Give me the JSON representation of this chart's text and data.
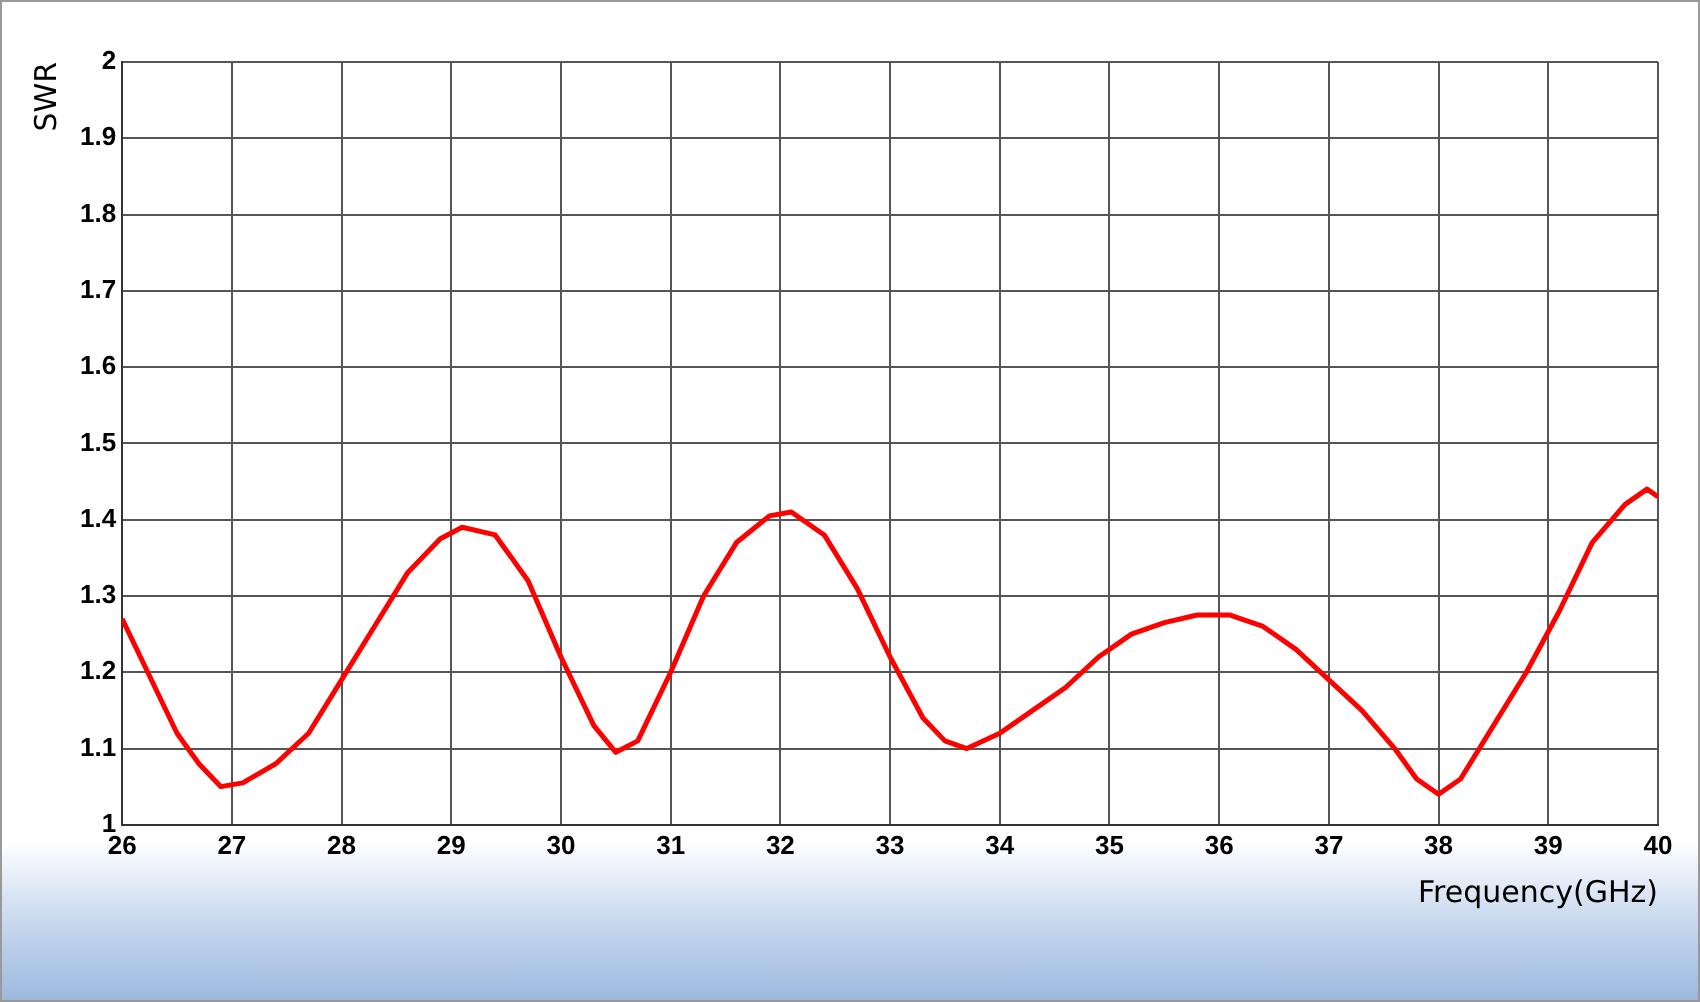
{
  "chart_data": {
    "type": "line",
    "xlabel": "Frequency(GHz)",
    "ylabel": "SWR",
    "xlim": [
      26,
      40
    ],
    "xticks": [
      26,
      27,
      28,
      29,
      30,
      31,
      32,
      33,
      34,
      35,
      36,
      37,
      38,
      39,
      40
    ],
    "ylim": [
      1,
      2
    ],
    "yticks": [
      1,
      1.1,
      1.2,
      1.3,
      1.4,
      1.5,
      1.6,
      1.7,
      1.8,
      1.9,
      2
    ],
    "grid": true,
    "legend": false,
    "marker": "none",
    "line_style": "solid",
    "series": [
      {
        "color": "#ff0000",
        "x": [
          26,
          26.3,
          26.5,
          26.7,
          26.9,
          27.1,
          27.4,
          27.7,
          28,
          28.3,
          28.6,
          28.9,
          29.1,
          29.4,
          29.7,
          30,
          30.3,
          30.5,
          30.7,
          31,
          31.3,
          31.6,
          31.9,
          32.1,
          32.4,
          32.7,
          33,
          33.3,
          33.5,
          33.7,
          34,
          34.3,
          34.6,
          34.9,
          35.2,
          35.5,
          35.8,
          36.1,
          36.4,
          36.7,
          37,
          37.3,
          37.6,
          37.8,
          38,
          38.2,
          38.5,
          38.8,
          39.1,
          39.4,
          39.7,
          39.9,
          40
        ],
        "values": [
          1.27,
          1.18,
          1.12,
          1.08,
          1.05,
          1.055,
          1.08,
          1.12,
          1.19,
          1.26,
          1.33,
          1.375,
          1.39,
          1.38,
          1.32,
          1.22,
          1.13,
          1.095,
          1.11,
          1.2,
          1.3,
          1.37,
          1.405,
          1.41,
          1.38,
          1.31,
          1.22,
          1.14,
          1.11,
          1.1,
          1.12,
          1.15,
          1.18,
          1.22,
          1.25,
          1.265,
          1.275,
          1.275,
          1.26,
          1.23,
          1.19,
          1.15,
          1.1,
          1.06,
          1.04,
          1.06,
          1.13,
          1.2,
          1.28,
          1.37,
          1.42,
          1.44,
          1.43
        ]
      }
    ]
  }
}
